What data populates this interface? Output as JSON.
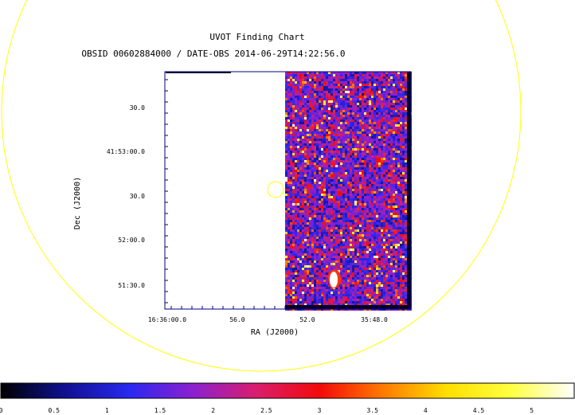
{
  "chart_data": {
    "type": "heatmap",
    "title": "UVOT Finding Chart",
    "subtitle": "OBSID 00602884000 / DATE-OBS 2014-06-29T14:22:56.0",
    "xlabel": "RA (J2000)",
    "ylabel": "Dec (J2000)",
    "x_ticks": [
      "16:36:00.0",
      "56.0",
      "52.0",
      "35:48.0"
    ],
    "y_ticks": [
      "30.0",
      "41:53:00.0",
      "30.0",
      "52:00.0",
      "51:30.0"
    ],
    "colorbar": {
      "ticks": [
        "0",
        "0.5",
        "1",
        "1.5",
        "2",
        "2.5",
        "3",
        "3.5",
        "4",
        "4.5",
        "5"
      ],
      "range": [
        0,
        5.4
      ],
      "colormap": [
        "#000000",
        "#101090",
        "#2828f0",
        "#8a20d0",
        "#d81e6e",
        "#f20a0a",
        "#ff7a00",
        "#ffdf00",
        "#ffff40",
        "#ffffff"
      ]
    },
    "overlays": [
      {
        "shape": "circle",
        "name": "large-yellow-circle",
        "color": "#ffff00"
      },
      {
        "shape": "circle",
        "name": "small-yellow-circle",
        "color": "#ffff00"
      }
    ],
    "image_regions": [
      "blank (no exposure) left portion",
      "noisy sky right portion",
      "bright source near bottom"
    ]
  }
}
